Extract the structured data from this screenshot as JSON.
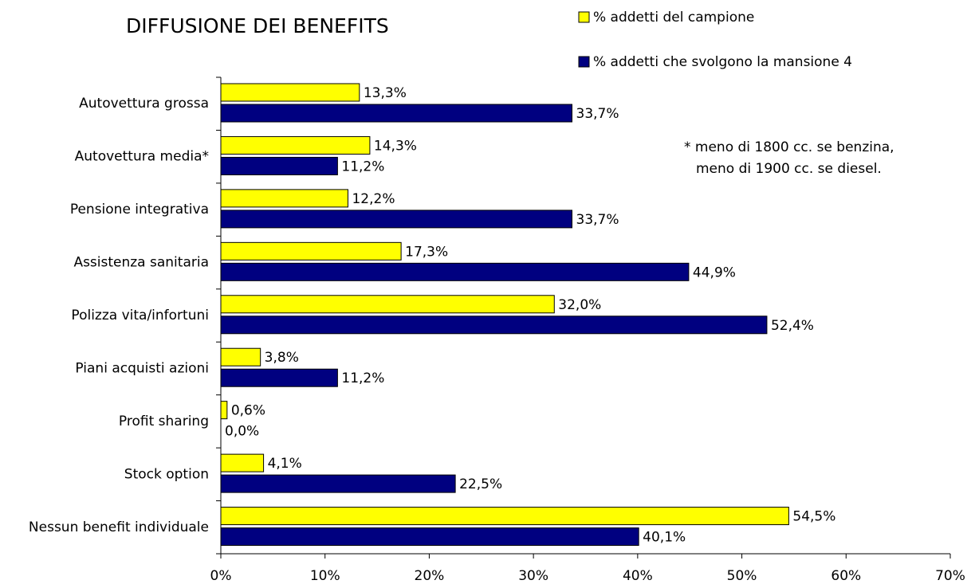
{
  "chart_data": {
    "type": "bar",
    "orientation": "horizontal",
    "title": "DIFFUSIONE DEI BENEFITS",
    "categories": [
      "Autovettura grossa",
      "Autovettura media*",
      "Pensione integrativa",
      "Assistenza sanitaria",
      "Polizza vita/infortuni",
      "Piani acquisti azioni",
      "Profit sharing",
      "Stock option",
      "Nessun benefit individuale"
    ],
    "series": [
      {
        "name": "% addetti del campione",
        "color": "#ffff00",
        "values": [
          13.3,
          14.3,
          12.2,
          17.3,
          32.0,
          3.8,
          0.6,
          4.1,
          54.5
        ],
        "value_labels": [
          "13,3%",
          "14,3%",
          "12,2%",
          "17,3%",
          "32,0%",
          "3,8%",
          "0,6%",
          "4,1%",
          "54,5%"
        ]
      },
      {
        "name": "% addetti che svolgono la mansione 4",
        "color": "#000080",
        "values": [
          33.7,
          11.2,
          33.7,
          44.9,
          52.4,
          11.2,
          0.0,
          22.5,
          40.1
        ],
        "value_labels": [
          "33,7%",
          "11,2%",
          "33,7%",
          "44,9%",
          "52,4%",
          "11,2%",
          "0,0%",
          "22,5%",
          "40,1%"
        ]
      }
    ],
    "xlim": [
      0,
      70
    ],
    "xticks": [
      {
        "value": 0,
        "label": "0%"
      },
      {
        "value": 10,
        "label": "10%"
      },
      {
        "value": 20,
        "label": "20%"
      },
      {
        "value": 30,
        "label": "30%"
      },
      {
        "value": 40,
        "label": "40%"
      },
      {
        "value": 50,
        "label": "50%"
      },
      {
        "value": 60,
        "label": "60%"
      },
      {
        "value": 70,
        "label": "70%"
      }
    ],
    "annotations": [
      "* meno di 1800 cc. se benzina,",
      "meno di 1900 cc. se diesel."
    ],
    "legend": "top-right",
    "grid": false
  }
}
